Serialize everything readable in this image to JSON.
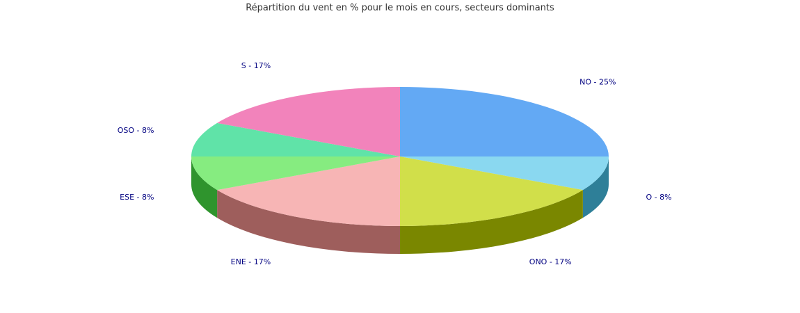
{
  "chart_data": {
    "type": "pie",
    "title": "Répartition du vent en % pour le mois en cours, secteurs dominants",
    "slices": [
      {
        "label": "NO - 25%",
        "value": 25,
        "color": "#63a9f4",
        "side_color": "#3a7bbf"
      },
      {
        "label": "O - 8%",
        "value": 8,
        "color": "#8ad8f0",
        "side_color": "#2e7f98"
      },
      {
        "label": "ONO - 17%",
        "value": 17,
        "color": "#d1df4a",
        "side_color": "#7a8700"
      },
      {
        "label": "ENE - 17%",
        "value": 17,
        "color": "#f7b5b5",
        "side_color": "#9e5e5c"
      },
      {
        "label": "ESE - 8%",
        "value": 8,
        "color": "#86ec80",
        "side_color": "#2f942d"
      },
      {
        "label": "OSO - 8%",
        "value": 8,
        "color": "#60e3a8",
        "side_color": "#2f9466"
      },
      {
        "label": "S - 17%",
        "value": 17,
        "color": "#f283bb",
        "side_color": "#a35079"
      }
    ],
    "label_color": "#000080",
    "3d": true
  }
}
